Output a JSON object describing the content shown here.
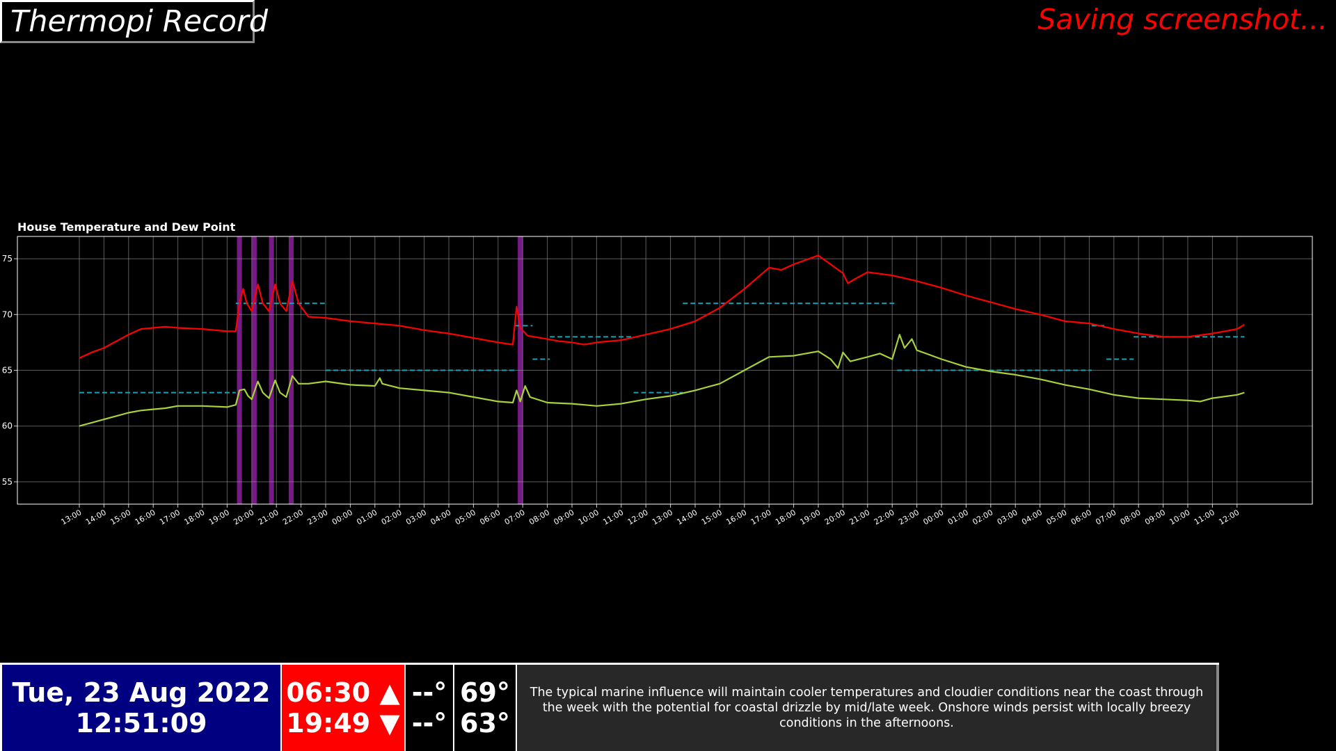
{
  "app": {
    "title": "Thermopi Record"
  },
  "status": {
    "text": "Saving screenshot..."
  },
  "chart_data": {
    "type": "line",
    "title": "House Temperature and Dew Point",
    "xlabel": "",
    "ylabel": "",
    "ylim": [
      53,
      77
    ],
    "xlim": [
      -0.5,
      48.3
    ],
    "grid": true,
    "y_ticks": [
      55,
      60,
      65,
      70,
      75
    ],
    "x_ticks": [
      {
        "x": 0,
        "label": "13:00"
      },
      {
        "x": 1,
        "label": "14:00"
      },
      {
        "x": 2,
        "label": "15:00"
      },
      {
        "x": 3,
        "label": "16:00"
      },
      {
        "x": 4,
        "label": "17:00"
      },
      {
        "x": 5,
        "label": "18:00"
      },
      {
        "x": 6,
        "label": "19:00"
      },
      {
        "x": 7,
        "label": "20:00"
      },
      {
        "x": 8,
        "label": "21:00"
      },
      {
        "x": 9,
        "label": "22:00"
      },
      {
        "x": 10,
        "label": "23:00"
      },
      {
        "x": 11,
        "label": "00:00"
      },
      {
        "x": 12,
        "label": "01:00"
      },
      {
        "x": 13,
        "label": "02:00"
      },
      {
        "x": 14,
        "label": "03:00"
      },
      {
        "x": 15,
        "label": "04:00"
      },
      {
        "x": 16,
        "label": "05:00"
      },
      {
        "x": 17,
        "label": "06:00"
      },
      {
        "x": 18,
        "label": "07:00"
      },
      {
        "x": 19,
        "label": "08:00"
      },
      {
        "x": 20,
        "label": "09:00"
      },
      {
        "x": 21,
        "label": "10:00"
      },
      {
        "x": 22,
        "label": "11:00"
      },
      {
        "x": 23,
        "label": "12:00"
      },
      {
        "x": 24,
        "label": "13:00"
      },
      {
        "x": 25,
        "label": "14:00"
      },
      {
        "x": 26,
        "label": "15:00"
      },
      {
        "x": 27,
        "label": "16:00"
      },
      {
        "x": 28,
        "label": "17:00"
      },
      {
        "x": 29,
        "label": "18:00"
      },
      {
        "x": 30,
        "label": "19:00"
      },
      {
        "x": 31,
        "label": "20:00"
      },
      {
        "x": 32,
        "label": "21:00"
      },
      {
        "x": 33,
        "label": "22:00"
      },
      {
        "x": 34,
        "label": "23:00"
      },
      {
        "x": 35,
        "label": "00:00"
      },
      {
        "x": 36,
        "label": "01:00"
      },
      {
        "x": 37,
        "label": "02:00"
      },
      {
        "x": 38,
        "label": "03:00"
      },
      {
        "x": 39,
        "label": "04:00"
      },
      {
        "x": 40,
        "label": "05:00"
      },
      {
        "x": 41,
        "label": "06:00"
      },
      {
        "x": 42,
        "label": "07:00"
      },
      {
        "x": 43,
        "label": "08:00"
      },
      {
        "x": 44,
        "label": "09:00"
      },
      {
        "x": 45,
        "label": "10:00"
      },
      {
        "x": 46,
        "label": "11:00"
      },
      {
        "x": 47,
        "label": "12:00"
      }
    ],
    "series": [
      {
        "color": "#ff0000",
        "points": [
          [
            0,
            66.1
          ],
          [
            0.5,
            66.6
          ],
          [
            1,
            67.0
          ],
          [
            1.5,
            67.6
          ],
          [
            2,
            68.2
          ],
          [
            2.5,
            68.7
          ],
          [
            3,
            68.8
          ],
          [
            3.5,
            68.9
          ],
          [
            4,
            68.8
          ],
          [
            5,
            68.7
          ],
          [
            6,
            68.5
          ],
          [
            6.35,
            68.5
          ],
          [
            6.5,
            71.0
          ],
          [
            6.65,
            72.3
          ],
          [
            6.8,
            71.0
          ],
          [
            7.0,
            70.3
          ],
          [
            7.25,
            72.7
          ],
          [
            7.45,
            71.0
          ],
          [
            7.7,
            70.3
          ],
          [
            7.95,
            72.7
          ],
          [
            8.15,
            71.0
          ],
          [
            8.4,
            70.3
          ],
          [
            8.65,
            73.0
          ],
          [
            8.9,
            71.0
          ],
          [
            9.3,
            69.8
          ],
          [
            10,
            69.7
          ],
          [
            11,
            69.4
          ],
          [
            12,
            69.2
          ],
          [
            13,
            69.0
          ],
          [
            14,
            68.6
          ],
          [
            15,
            68.3
          ],
          [
            16,
            67.9
          ],
          [
            17,
            67.5
          ],
          [
            17.6,
            67.3
          ],
          [
            17.75,
            70.7
          ],
          [
            17.9,
            68.8
          ],
          [
            18.2,
            68.1
          ],
          [
            19,
            67.8
          ],
          [
            19.5,
            67.6
          ],
          [
            20,
            67.5
          ],
          [
            20.5,
            67.3
          ],
          [
            21,
            67.5
          ],
          [
            22,
            67.7
          ],
          [
            23,
            68.2
          ],
          [
            24,
            68.7
          ],
          [
            25,
            69.4
          ],
          [
            26,
            70.6
          ],
          [
            27,
            72.3
          ],
          [
            28,
            74.2
          ],
          [
            28.5,
            74.0
          ],
          [
            29,
            74.5
          ],
          [
            30,
            75.3
          ],
          [
            30.5,
            74.5
          ],
          [
            31,
            73.7
          ],
          [
            31.2,
            72.8
          ],
          [
            31.5,
            73.2
          ],
          [
            32,
            73.8
          ],
          [
            33,
            73.5
          ],
          [
            34,
            73.0
          ],
          [
            35,
            72.4
          ],
          [
            36,
            71.7
          ],
          [
            37,
            71.1
          ],
          [
            38,
            70.5
          ],
          [
            39,
            70.0
          ],
          [
            40,
            69.4
          ],
          [
            41,
            69.2
          ],
          [
            42,
            68.7
          ],
          [
            43,
            68.3
          ],
          [
            44,
            68.0
          ],
          [
            45,
            68.0
          ],
          [
            46,
            68.3
          ],
          [
            46.5,
            68.5
          ],
          [
            47,
            68.7
          ],
          [
            47.3,
            69.1
          ]
        ]
      },
      {
        "color": "#a8d23a",
        "points": [
          [
            0,
            60.0
          ],
          [
            0.5,
            60.3
          ],
          [
            1,
            60.6
          ],
          [
            1.5,
            60.9
          ],
          [
            2,
            61.2
          ],
          [
            2.5,
            61.4
          ],
          [
            3,
            61.5
          ],
          [
            3.5,
            61.6
          ],
          [
            4,
            61.8
          ],
          [
            5,
            61.8
          ],
          [
            6,
            61.7
          ],
          [
            6.35,
            61.9
          ],
          [
            6.5,
            63.2
          ],
          [
            6.7,
            63.3
          ],
          [
            6.85,
            62.7
          ],
          [
            7.0,
            62.4
          ],
          [
            7.25,
            64.0
          ],
          [
            7.45,
            63.0
          ],
          [
            7.7,
            62.5
          ],
          [
            7.95,
            64.1
          ],
          [
            8.15,
            63.0
          ],
          [
            8.4,
            62.6
          ],
          [
            8.65,
            64.5
          ],
          [
            8.9,
            63.8
          ],
          [
            9.3,
            63.8
          ],
          [
            10,
            64.0
          ],
          [
            11,
            63.7
          ],
          [
            12,
            63.6
          ],
          [
            12.2,
            64.3
          ],
          [
            12.3,
            63.8
          ],
          [
            13,
            63.4
          ],
          [
            14,
            63.2
          ],
          [
            15,
            63.0
          ],
          [
            16,
            62.6
          ],
          [
            17,
            62.2
          ],
          [
            17.6,
            62.1
          ],
          [
            17.75,
            63.2
          ],
          [
            17.9,
            62.2
          ],
          [
            18.1,
            63.6
          ],
          [
            18.3,
            62.6
          ],
          [
            19,
            62.1
          ],
          [
            20,
            62.0
          ],
          [
            20.5,
            61.9
          ],
          [
            21,
            61.8
          ],
          [
            22,
            62.0
          ],
          [
            23,
            62.4
          ],
          [
            24,
            62.7
          ],
          [
            25,
            63.2
          ],
          [
            26,
            63.8
          ],
          [
            27,
            65.0
          ],
          [
            28,
            66.2
          ],
          [
            29,
            66.3
          ],
          [
            30,
            66.7
          ],
          [
            30.5,
            66.0
          ],
          [
            30.8,
            65.2
          ],
          [
            31,
            66.6
          ],
          [
            31.3,
            65.8
          ],
          [
            32,
            66.2
          ],
          [
            32.5,
            66.5
          ],
          [
            33,
            66.0
          ],
          [
            33.3,
            68.2
          ],
          [
            33.5,
            67.0
          ],
          [
            33.8,
            67.8
          ],
          [
            34,
            66.8
          ],
          [
            34.5,
            66.4
          ],
          [
            35,
            66.0
          ],
          [
            36,
            65.3
          ],
          [
            37,
            64.9
          ],
          [
            38,
            64.6
          ],
          [
            39,
            64.2
          ],
          [
            40,
            63.7
          ],
          [
            41,
            63.3
          ],
          [
            42,
            62.8
          ],
          [
            43,
            62.5
          ],
          [
            44,
            62.4
          ],
          [
            45,
            62.3
          ],
          [
            45.5,
            62.2
          ],
          [
            46,
            62.5
          ],
          [
            47,
            62.8
          ],
          [
            47.3,
            63.0
          ]
        ]
      }
    ],
    "setpoints": {
      "color": "#20a0b4",
      "segments": [
        [
          0,
          6.35,
          63
        ],
        [
          6.35,
          10,
          71
        ],
        [
          10,
          17.7,
          65
        ],
        [
          17.7,
          18.4,
          69
        ],
        [
          18.4,
          19.1,
          66
        ],
        [
          19.1,
          22.5,
          68
        ],
        [
          22.5,
          24.5,
          63
        ],
        [
          24.5,
          33.2,
          71
        ],
        [
          33.2,
          41.1,
          65
        ],
        [
          41.1,
          41.7,
          69
        ],
        [
          41.7,
          42.8,
          66
        ],
        [
          42.8,
          47.3,
          68
        ]
      ]
    },
    "highlight_bands": {
      "color": "#8b1f9c",
      "ranges": [
        [
          6.4,
          6.6
        ],
        [
          7.0,
          7.2
        ],
        [
          7.7,
          7.9
        ],
        [
          8.5,
          8.7
        ],
        [
          17.8,
          18.0
        ]
      ]
    }
  },
  "bottom": {
    "date": "Tue, 23 Aug 2022",
    "time": "12:51:09",
    "sunrise": "06:30 ▲",
    "sunset": "19:49 ▼",
    "outdoor_high": "--°",
    "outdoor_low": "--°",
    "indoor_high": "69°",
    "indoor_low": "63°",
    "forecast": "The typical marine influence will maintain cooler temperatures and cloudier conditions near the coast through the week with the potential for coastal drizzle by mid/late week. Onshore winds persist with locally breezy conditions in the afternoons."
  }
}
